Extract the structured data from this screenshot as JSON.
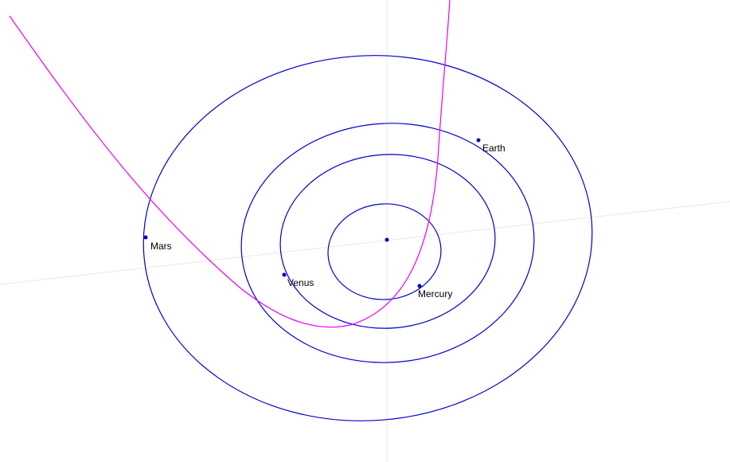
{
  "colors": {
    "background": "#ffffff",
    "orbit": "#0000cc",
    "planet": "#0000cc",
    "sun": "#0000cc",
    "comet_path": "#ee00ee",
    "axis": "#e8e8e8"
  },
  "sun": {
    "name": "sun-marker"
  },
  "planets": [
    {
      "id": "mercury",
      "label": "Mercury"
    },
    {
      "id": "venus",
      "label": "Venus"
    },
    {
      "id": "earth",
      "label": "Earth"
    },
    {
      "id": "mars",
      "label": "Mars"
    }
  ],
  "comet": {
    "id": "comet-trajectory"
  }
}
